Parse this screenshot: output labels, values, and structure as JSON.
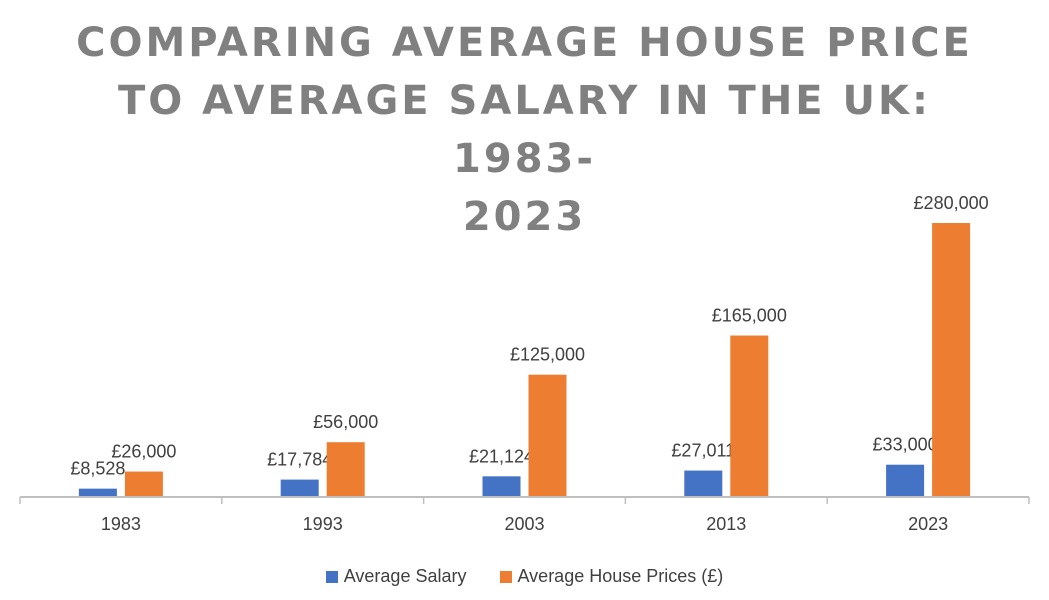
{
  "chart_data": {
    "type": "bar",
    "title_lines": [
      "COMPARING AVERAGE HOUSE PRICE",
      "TO AVERAGE SALARY IN THE UK: 1983-",
      "2023"
    ],
    "categories": [
      "1983",
      "1993",
      "2003",
      "2013",
      "2023"
    ],
    "series": [
      {
        "name": "Average Salary",
        "color": "#4472C4",
        "values": [
          8528,
          17784,
          21124,
          27011,
          33000
        ],
        "labels": [
          "£8,528",
          "£17,784",
          "£21,124",
          "£27,011",
          "£33,000"
        ]
      },
      {
        "name": "Average House Prices (£)",
        "color": "#ED7D31",
        "values": [
          26000,
          56000,
          125000,
          165000,
          280000
        ],
        "labels": [
          "£26,000",
          "£56,000",
          "£125,000",
          "£165,000",
          "£280,000"
        ]
      }
    ],
    "ylim": [
      0,
      280000
    ],
    "xlabel": "",
    "ylabel": "",
    "grid": false,
    "legend_position": "bottom"
  }
}
